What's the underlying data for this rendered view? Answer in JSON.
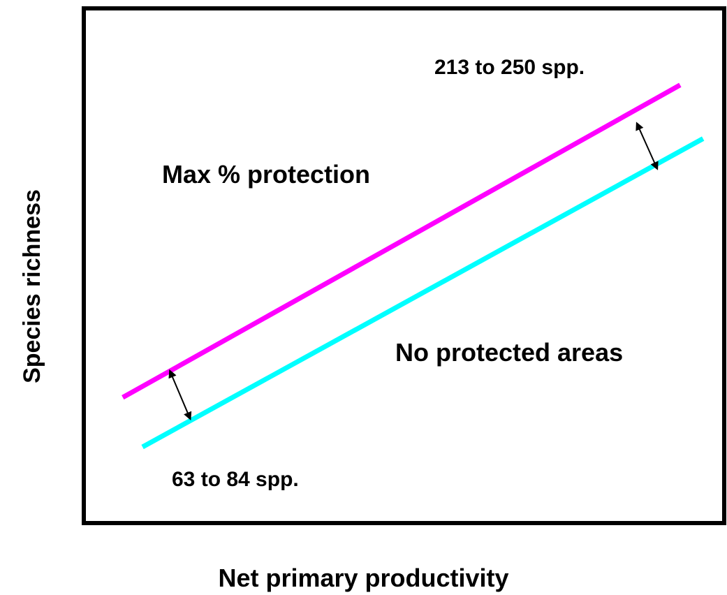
{
  "chart_data": {
    "type": "line",
    "xlabel": "Net primary productivity",
    "ylabel": "Species richness",
    "xlim": [
      0,
      100
    ],
    "ylim": [
      0,
      100
    ],
    "grid": false,
    "legend": "none",
    "series": [
      {
        "name": "Max % protection",
        "color": "#ff00ff",
        "x": [
          5.8,
          93.4
        ],
        "y": [
          24.2,
          85.4
        ]
      },
      {
        "name": "No protected areas",
        "color": "#00ffff",
        "x": [
          8.9,
          97.0
        ],
        "y": [
          14.5,
          74.9
        ]
      }
    ],
    "annotations": [
      {
        "id": "top-range",
        "text": "213 to 250 spp.",
        "arrow": {
          "x1": 86.6,
          "y1": 77.9,
          "x2": 89.8,
          "y2": 69.0
        }
      },
      {
        "id": "bottom-range",
        "text": "63 to 84 spp.",
        "arrow": {
          "x1": 13.2,
          "y1": 29.4,
          "x2": 16.4,
          "y2": 20.0
        }
      }
    ],
    "arrow_color": "#000000",
    "axes_color": "#000000"
  }
}
